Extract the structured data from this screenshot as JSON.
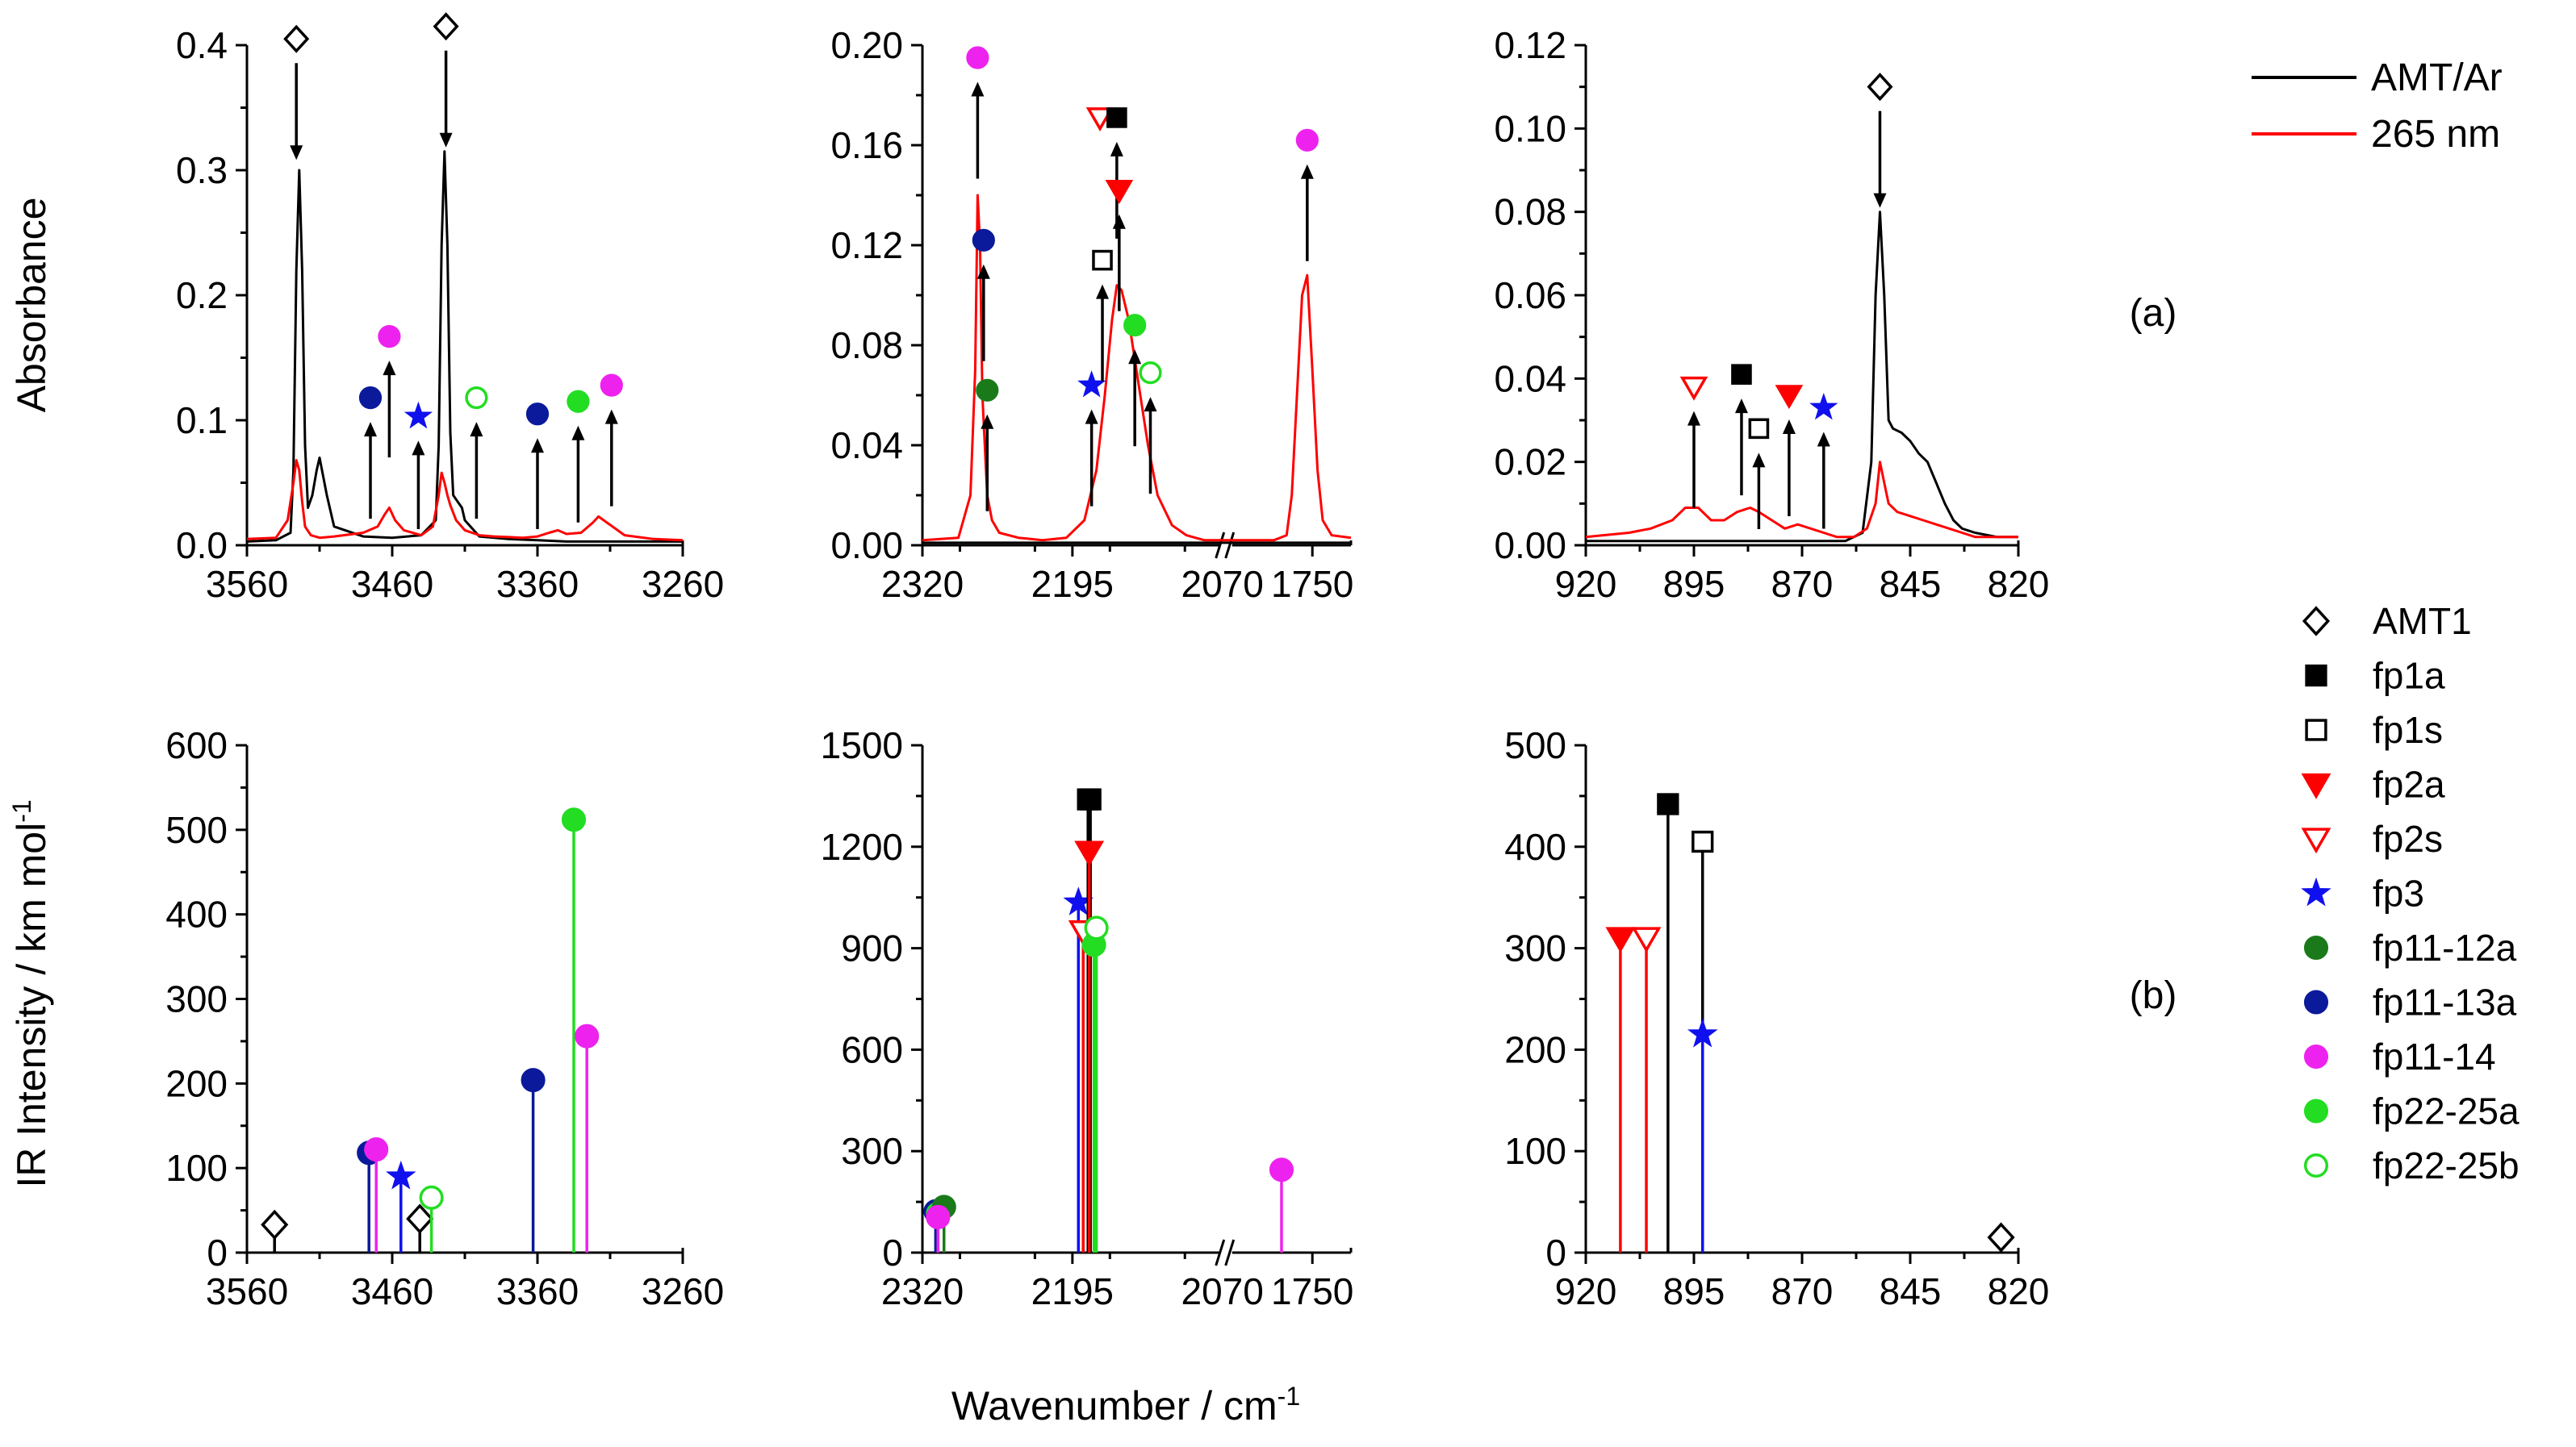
{
  "figure": {
    "ylabel_top": "Absorbance",
    "ylabel_bottom": "IR Intensity / km mol",
    "ylabel_bottom_sup": "-1",
    "xlabel": "Wavenumber / cm",
    "xlabel_sup": "-1",
    "panel_a": "(a)",
    "panel_b": "(b)"
  },
  "legend_lines": [
    {
      "label": "AMT/Ar",
      "color": "#000000"
    },
    {
      "label": "265 nm",
      "color": "#ff0000"
    }
  ],
  "legend_markers": [
    {
      "key": "AMT1",
      "label": "AMT1",
      "shape": "diamond",
      "fill": "none",
      "color": "#000000"
    },
    {
      "key": "fp1a",
      "label": "fp1a",
      "shape": "square",
      "fill": "#000000",
      "color": "#000000"
    },
    {
      "key": "fp1s",
      "label": "fp1s",
      "shape": "square",
      "fill": "none",
      "color": "#000000"
    },
    {
      "key": "fp2a",
      "label": "fp2a",
      "shape": "triangle-down",
      "fill": "#ff0000",
      "color": "#ff0000"
    },
    {
      "key": "fp2s",
      "label": "fp2s",
      "shape": "triangle-down",
      "fill": "none",
      "color": "#ff0000"
    },
    {
      "key": "fp3",
      "label": "fp3",
      "shape": "star",
      "fill": "#1010ee",
      "color": "#1010ee"
    },
    {
      "key": "fp11-12a",
      "label": "fp11-12a",
      "shape": "circle",
      "fill": "#1a7a1a",
      "color": "#1a7a1a"
    },
    {
      "key": "fp11-13a",
      "label": "fp11-13a",
      "shape": "circle",
      "fill": "#0a1a9a",
      "color": "#0a1a9a"
    },
    {
      "key": "fp11-14",
      "label": "fp11-14",
      "shape": "circle",
      "fill": "#ee22ee",
      "color": "#ee22ee"
    },
    {
      "key": "fp22-25a",
      "label": "fp22-25a",
      "shape": "circle",
      "fill": "#22dd22",
      "color": "#22dd22"
    },
    {
      "key": "fp22-25b",
      "label": "fp22-25b",
      "shape": "circle",
      "fill": "none",
      "color": "#22dd22"
    }
  ],
  "chart_data": [
    {
      "type": "line",
      "panel": "a-left",
      "xlim": [
        3560,
        3260
      ],
      "ylim": [
        0,
        0.4
      ],
      "xticks": [
        "3560",
        "3460",
        "3360",
        "3260"
      ],
      "xtick_values": [
        3560,
        3460,
        3360,
        3260
      ],
      "yticks": [
        "0.0",
        "0.1",
        "0.2",
        "0.3",
        "0.4"
      ],
      "ytick_values": [
        0,
        0.1,
        0.2,
        0.3,
        0.4
      ],
      "series": [
        {
          "name": "AMT/Ar",
          "color": "#000000",
          "x": [
            3560,
            3540,
            3530,
            3528,
            3526,
            3524,
            3522,
            3520,
            3518,
            3515,
            3512,
            3510,
            3505,
            3500,
            3480,
            3460,
            3440,
            3430,
            3428,
            3426,
            3424,
            3422,
            3420,
            3418,
            3415,
            3412,
            3410,
            3400,
            3380,
            3360,
            3340,
            3320,
            3300,
            3280,
            3260
          ],
          "y": [
            0.003,
            0.004,
            0.01,
            0.06,
            0.22,
            0.3,
            0.22,
            0.08,
            0.03,
            0.04,
            0.06,
            0.07,
            0.04,
            0.015,
            0.007,
            0.006,
            0.008,
            0.02,
            0.08,
            0.24,
            0.315,
            0.24,
            0.09,
            0.04,
            0.035,
            0.03,
            0.02,
            0.007,
            0.005,
            0.004,
            0.003,
            0.003,
            0.003,
            0.003,
            0.003
          ]
        },
        {
          "name": "265 nm",
          "color": "#ff0000",
          "x": [
            3560,
            3540,
            3532,
            3528,
            3526,
            3524,
            3522,
            3520,
            3516,
            3510,
            3500,
            3480,
            3470,
            3465,
            3462,
            3458,
            3452,
            3446,
            3440,
            3432,
            3428,
            3426,
            3424,
            3422,
            3420,
            3416,
            3410,
            3400,
            3390,
            3370,
            3360,
            3352,
            3346,
            3340,
            3330,
            3322,
            3318,
            3312,
            3300,
            3280,
            3260
          ],
          "y": [
            0.005,
            0.006,
            0.02,
            0.05,
            0.068,
            0.06,
            0.035,
            0.015,
            0.008,
            0.006,
            0.007,
            0.01,
            0.015,
            0.025,
            0.03,
            0.02,
            0.012,
            0.01,
            0.008,
            0.015,
            0.04,
            0.058,
            0.05,
            0.04,
            0.032,
            0.02,
            0.012,
            0.008,
            0.007,
            0.006,
            0.007,
            0.01,
            0.012,
            0.009,
            0.01,
            0.018,
            0.023,
            0.018,
            0.008,
            0.005,
            0.004
          ]
        }
      ],
      "annotations": [
        {
          "marker": "AMT1",
          "x": 3526,
          "y": 0.405,
          "arrow": "down"
        },
        {
          "marker": "AMT1",
          "x": 3423,
          "y": 0.415,
          "arrow": "down"
        },
        {
          "marker": "fp11-13a",
          "x": 3475,
          "y": 0.118,
          "arrow": "up"
        },
        {
          "marker": "fp11-14",
          "x": 3462,
          "y": 0.167,
          "arrow": "up"
        },
        {
          "marker": "fp3",
          "x": 3442,
          "y": 0.103,
          "arrow": "up"
        },
        {
          "marker": "fp22-25b",
          "x": 3402,
          "y": 0.118,
          "arrow": "up"
        },
        {
          "marker": "fp11-13a",
          "x": 3360,
          "y": 0.105,
          "arrow": "up"
        },
        {
          "marker": "fp22-25a",
          "x": 3332,
          "y": 0.115,
          "arrow": "up"
        },
        {
          "marker": "fp11-14",
          "x": 3309,
          "y": 0.128,
          "arrow": "up"
        }
      ]
    },
    {
      "type": "line",
      "panel": "a-middle",
      "x_broken": true,
      "xlim_segments": [
        [
          2320,
          2070
        ],
        [
          1820,
          1720
        ]
      ],
      "ylim": [
        0,
        0.2
      ],
      "xticks": [
        "2320",
        "2195",
        "2070",
        "1750"
      ],
      "xtick_values": [
        2320,
        2195,
        2070,
        1750
      ],
      "yticks": [
        "0.00",
        "0.04",
        "0.08",
        "0.12",
        "0.16",
        "0.20"
      ],
      "ytick_values": [
        0,
        0.04,
        0.08,
        0.12,
        0.16,
        0.2
      ],
      "series": [
        {
          "name": "AMT/Ar",
          "color": "#000000",
          "x": [
            2320,
            2250,
            2200,
            2150,
            2100,
            2070,
            1820,
            1780,
            1750,
            1720
          ],
          "y": [
            0.001,
            0.001,
            0.001,
            0.001,
            0.001,
            0.001,
            0.001,
            0.001,
            0.001,
            0.001
          ]
        },
        {
          "name": "265 nm",
          "color": "#ff0000",
          "x": [
            2320,
            2290,
            2280,
            2276,
            2274,
            2272,
            2270,
            2266,
            2262,
            2256,
            2240,
            2220,
            2200,
            2185,
            2175,
            2168,
            2162,
            2158,
            2154,
            2148,
            2140,
            2132,
            2124,
            2112,
            2100,
            2085,
            2070,
            1820,
            1780,
            1770,
            1766,
            1762,
            1758,
            1754,
            1750,
            1746,
            1742,
            1735,
            1720
          ],
          "y": [
            0.002,
            0.003,
            0.02,
            0.07,
            0.14,
            0.12,
            0.06,
            0.02,
            0.01,
            0.005,
            0.003,
            0.002,
            0.003,
            0.01,
            0.03,
            0.06,
            0.09,
            0.104,
            0.102,
            0.09,
            0.065,
            0.04,
            0.02,
            0.008,
            0.004,
            0.002,
            0.002,
            0.002,
            0.002,
            0.004,
            0.02,
            0.06,
            0.1,
            0.108,
            0.07,
            0.03,
            0.01,
            0.004,
            0.003
          ]
        }
      ],
      "annotations": [
        {
          "marker": "fp11-14",
          "x": 2274,
          "y": 0.195,
          "arrow": "up"
        },
        {
          "marker": "fp11-13a",
          "x": 2269,
          "y": 0.122,
          "arrow": "up"
        },
        {
          "marker": "fp11-12a",
          "x": 2266,
          "y": 0.062,
          "arrow": "up"
        },
        {
          "marker": "fp3",
          "x": 2179,
          "y": 0.064,
          "arrow": "up"
        },
        {
          "marker": "fp1s",
          "x": 2170,
          "y": 0.114,
          "arrow": "up"
        },
        {
          "marker": "fp2s",
          "x": 2172,
          "y": 0.171,
          "arrow": "none"
        },
        {
          "marker": "fp1a",
          "x": 2158,
          "y": 0.171,
          "arrow": "up"
        },
        {
          "marker": "fp2a",
          "x": 2156,
          "y": 0.142,
          "arrow": "up"
        },
        {
          "marker": "fp22-25a",
          "x": 2143,
          "y": 0.088,
          "arrow": "up"
        },
        {
          "marker": "fp22-25b",
          "x": 2130,
          "y": 0.069,
          "arrow": "up"
        },
        {
          "marker": "fp11-14",
          "x": 1754,
          "y": 0.162,
          "arrow": "up"
        }
      ]
    },
    {
      "type": "line",
      "panel": "a-right",
      "xlim": [
        920,
        820
      ],
      "ylim": [
        0,
        0.12
      ],
      "xticks": [
        "920",
        "895",
        "870",
        "845",
        "820"
      ],
      "xtick_values": [
        920,
        895,
        870,
        845,
        820
      ],
      "yticks": [
        "0.00",
        "0.02",
        "0.04",
        "0.06",
        "0.08",
        "0.10",
        "0.12"
      ],
      "ytick_values": [
        0,
        0.02,
        0.04,
        0.06,
        0.08,
        0.1,
        0.12
      ],
      "series": [
        {
          "name": "AMT/Ar",
          "color": "#000000",
          "x": [
            920,
            900,
            880,
            860,
            856,
            854,
            853,
            852,
            851,
            850,
            849,
            847,
            845,
            843,
            841,
            839,
            837,
            835,
            833,
            830,
            825,
            820
          ],
          "y": [
            0.001,
            0.001,
            0.001,
            0.001,
            0.003,
            0.02,
            0.06,
            0.08,
            0.06,
            0.03,
            0.028,
            0.027,
            0.025,
            0.022,
            0.02,
            0.015,
            0.01,
            0.006,
            0.004,
            0.003,
            0.002,
            0.002
          ]
        },
        {
          "name": "265 nm",
          "color": "#ff0000",
          "x": [
            920,
            910,
            905,
            900,
            897,
            894,
            891,
            888,
            885,
            882,
            880,
            877,
            874,
            871,
            868,
            865,
            862,
            858,
            855,
            853,
            852,
            851,
            850,
            848,
            845,
            842,
            839,
            836,
            833,
            830,
            825,
            820
          ],
          "y": [
            0.002,
            0.003,
            0.004,
            0.006,
            0.009,
            0.009,
            0.006,
            0.006,
            0.008,
            0.009,
            0.008,
            0.006,
            0.004,
            0.005,
            0.004,
            0.003,
            0.002,
            0.002,
            0.004,
            0.01,
            0.02,
            0.015,
            0.01,
            0.008,
            0.007,
            0.006,
            0.005,
            0.004,
            0.003,
            0.002,
            0.002,
            0.002
          ]
        }
      ],
      "annotations": [
        {
          "marker": "AMT1",
          "x": 852,
          "y": 0.11,
          "arrow": "down"
        },
        {
          "marker": "fp2s",
          "x": 895,
          "y": 0.038,
          "arrow": "up"
        },
        {
          "marker": "fp1a",
          "x": 884,
          "y": 0.041,
          "arrow": "up"
        },
        {
          "marker": "fp1s",
          "x": 880,
          "y": 0.028,
          "arrow": "up"
        },
        {
          "marker": "fp2a",
          "x": 873,
          "y": 0.036,
          "arrow": "up"
        },
        {
          "marker": "fp3",
          "x": 865,
          "y": 0.033,
          "arrow": "up"
        }
      ]
    },
    {
      "type": "stem",
      "panel": "b-left",
      "xlim": [
        3560,
        3260
      ],
      "ylim": [
        0,
        600
      ],
      "xticks": [
        "3560",
        "3460",
        "3360",
        "3260"
      ],
      "xtick_values": [
        3560,
        3460,
        3360,
        3260
      ],
      "yticks": [
        "0",
        "100",
        "200",
        "300",
        "400",
        "500",
        "600"
      ],
      "ytick_values": [
        0,
        100,
        200,
        300,
        400,
        500,
        600
      ],
      "stems": [
        {
          "marker": "AMT1",
          "x": 3541,
          "y": 33
        },
        {
          "marker": "fp11-13a",
          "x": 3476,
          "y": 118
        },
        {
          "marker": "fp11-14",
          "x": 3471,
          "y": 122
        },
        {
          "marker": "fp3",
          "x": 3454,
          "y": 90
        },
        {
          "marker": "AMT1",
          "x": 3441,
          "y": 40
        },
        {
          "marker": "fp22-25b",
          "x": 3433,
          "y": 65
        },
        {
          "marker": "fp11-13a",
          "x": 3363,
          "y": 204
        },
        {
          "marker": "fp22-25a",
          "x": 3335,
          "y": 512
        },
        {
          "marker": "fp11-14",
          "x": 3326,
          "y": 256
        }
      ]
    },
    {
      "type": "stem",
      "panel": "b-middle",
      "x_broken": true,
      "xlim_segments": [
        [
          2320,
          2070
        ],
        [
          1820,
          1720
        ]
      ],
      "ylim": [
        0,
        1500
      ],
      "xticks": [
        "2320",
        "2195",
        "2070",
        "1750"
      ],
      "xtick_values": [
        2320,
        2195,
        2070,
        1750
      ],
      "yticks": [
        "0",
        "300",
        "600",
        "900",
        "1200",
        "1500"
      ],
      "ytick_values": [
        0,
        300,
        600,
        900,
        1200,
        1500
      ],
      "stems": [
        {
          "marker": "fp11-13a",
          "x": 2309,
          "y": 122
        },
        {
          "marker": "fp22-25a",
          "x": 2307,
          "y": 115
        },
        {
          "marker": "fp11-12a",
          "x": 2302,
          "y": 135
        },
        {
          "marker": "fp11-14",
          "x": 2307,
          "y": 105
        },
        {
          "marker": "fp3",
          "x": 2190,
          "y": 1035
        },
        {
          "marker": "fp2s",
          "x": 2186,
          "y": 950
        },
        {
          "marker": "fp1s",
          "x": 2182,
          "y": 1340
        },
        {
          "marker": "fp1a",
          "x": 2180,
          "y": 1340
        },
        {
          "marker": "fp2a",
          "x": 2181,
          "y": 1185
        },
        {
          "marker": "fp22-25a",
          "x": 2177,
          "y": 910
        },
        {
          "marker": "fp22-25b",
          "x": 2175,
          "y": 960
        },
        {
          "marker": "fp11-14",
          "x": 1774,
          "y": 245
        }
      ]
    },
    {
      "type": "stem",
      "panel": "b-right",
      "xlim": [
        920,
        820
      ],
      "ylim": [
        0,
        500
      ],
      "xticks": [
        "920",
        "895",
        "870",
        "845",
        "820"
      ],
      "xtick_values": [
        920,
        895,
        870,
        845,
        820
      ],
      "yticks": [
        "0",
        "100",
        "200",
        "300",
        "400",
        "500"
      ],
      "ytick_values": [
        0,
        100,
        200,
        300,
        400,
        500
      ],
      "stems": [
        {
          "marker": "fp2a",
          "x": 912,
          "y": 310
        },
        {
          "marker": "fp2s",
          "x": 906,
          "y": 310
        },
        {
          "marker": "fp1a",
          "x": 901,
          "y": 442
        },
        {
          "marker": "fp1s",
          "x": 893,
          "y": 405
        },
        {
          "marker": "fp3",
          "x": 893,
          "y": 215
        },
        {
          "marker": "AMT1",
          "x": 824,
          "y": 15
        }
      ]
    }
  ]
}
